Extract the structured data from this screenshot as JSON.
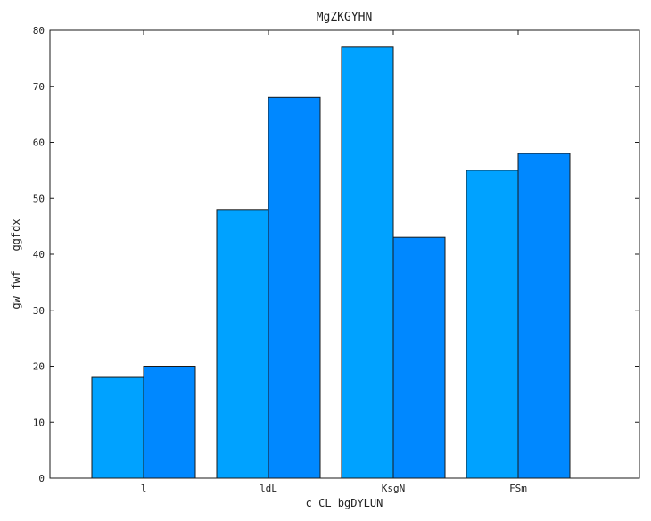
{
  "chart_data": {
    "type": "bar",
    "title": "MgZKGYHN",
    "xlabel": "c CL bgDYLUN",
    "ylabel": "gw fwf   ggfdx",
    "categories": [
      "l",
      "ldL",
      "KsgN",
      "FSm"
    ],
    "series": [
      {
        "values": [
          18,
          48,
          77,
          55
        ],
        "color": "#00a2ff"
      },
      {
        "values": [
          20,
          68,
          43,
          58
        ],
        "color": "#0088ff"
      }
    ],
    "ylim": [
      0,
      80
    ],
    "yticks": [
      0,
      10,
      20,
      30,
      40,
      50,
      60,
      70,
      80
    ],
    "grid": false,
    "legend": "none"
  }
}
